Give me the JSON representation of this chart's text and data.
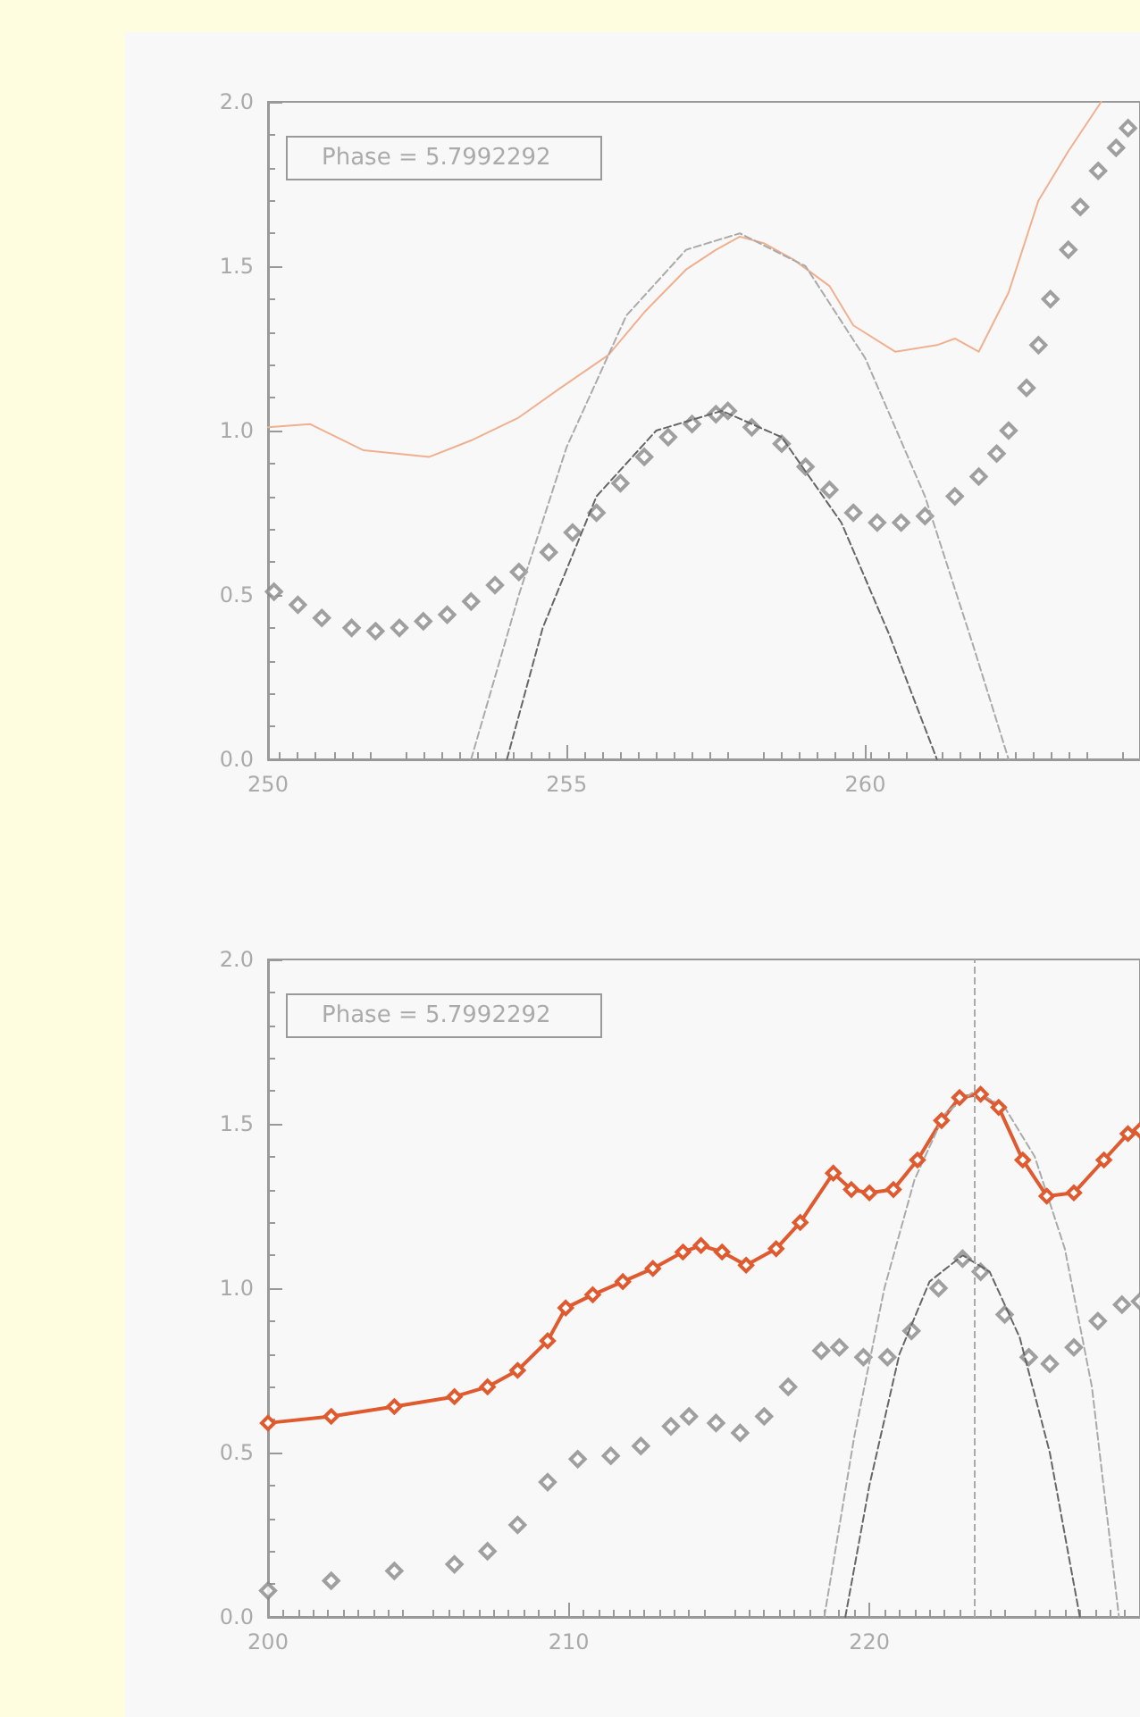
{
  "chart_data": [
    {
      "type": "line",
      "annotations": [
        "Phase = 5.7992292"
      ],
      "xlim": [
        250,
        264.6
      ],
      "xticks": [
        250,
        255,
        260
      ],
      "ylim": [
        0,
        2
      ],
      "yticks": [
        {
          "value": 0,
          "label": "0.0"
        },
        {
          "value": 0.5,
          "label": "0.5"
        },
        {
          "value": 1,
          "label": "1.0"
        },
        {
          "value": 1.5,
          "label": "1.5"
        },
        {
          "value": 2,
          "label": "2.0"
        }
      ],
      "series": [
        {
          "marker": "none",
          "line_style": "solid",
          "color": "#f0b090",
          "x": [
            250,
            250.7,
            251.6,
            252.7,
            253.4,
            254.2,
            254.9,
            255.7,
            256.3,
            257.0,
            257.5,
            257.9,
            258.3,
            258.8,
            259.4,
            259.8,
            260.5,
            261.2,
            261.5,
            261.9,
            262.4,
            262.9,
            263.4,
            263.95
          ],
          "values": [
            1.01,
            1.02,
            0.94,
            0.92,
            0.97,
            1.04,
            1.13,
            1.23,
            1.36,
            1.49,
            1.55,
            1.59,
            1.57,
            1.52,
            1.44,
            1.32,
            1.24,
            1.26,
            1.28,
            1.24,
            1.42,
            1.7,
            1.85,
            2.0
          ]
        },
        {
          "type": "scatter",
          "marker": "diamond",
          "color": "#888888",
          "x": [
            250.1,
            250.5,
            250.9,
            251.4,
            251.8,
            252.2,
            252.6,
            253.0,
            253.4,
            253.8,
            254.2,
            254.7,
            255.1,
            255.5,
            255.9,
            256.3,
            256.7,
            257.1,
            257.5,
            257.7,
            258.1,
            258.6,
            259.0,
            259.4,
            259.8,
            260.2,
            260.6,
            261.0,
            261.5,
            261.9,
            262.2,
            262.4,
            262.7,
            262.9,
            263.1,
            263.4,
            263.6,
            263.9,
            264.2,
            264.4
          ],
          "values": [
            0.51,
            0.47,
            0.43,
            0.4,
            0.39,
            0.4,
            0.42,
            0.44,
            0.48,
            0.53,
            0.57,
            0.63,
            0.69,
            0.75,
            0.84,
            0.92,
            0.98,
            1.02,
            1.05,
            1.06,
            1.01,
            0.96,
            0.89,
            0.82,
            0.75,
            0.72,
            0.72,
            0.74,
            0.8,
            0.86,
            0.93,
            1.0,
            1.13,
            1.26,
            1.4,
            1.55,
            1.68,
            1.79,
            1.86,
            1.92
          ]
        },
        {
          "marker": "none",
          "line_style": "dashed",
          "color": "#aaaaaa",
          "x": [
            253.4,
            254.2,
            255.0,
            256.0,
            257.0,
            257.9,
            259.0,
            260.0,
            261.0,
            261.8,
            262.4
          ],
          "values": [
            0,
            0.5,
            0.95,
            1.35,
            1.55,
            1.6,
            1.5,
            1.22,
            0.8,
            0.35,
            0
          ]
        },
        {
          "marker": "none",
          "line_style": "dashed",
          "color": "#666666",
          "x": [
            254.0,
            254.6,
            255.5,
            256.5,
            257.6,
            258.6,
            259.6,
            260.4,
            261.2
          ],
          "values": [
            0,
            0.4,
            0.8,
            1.0,
            1.06,
            0.98,
            0.72,
            0.38,
            0
          ]
        }
      ]
    },
    {
      "type": "line",
      "annotations": [
        "Phase = 5.7992292"
      ],
      "xlim": [
        200,
        229
      ],
      "xticks": [
        200,
        210,
        220
      ],
      "ylim": [
        0,
        2
      ],
      "yticks": [
        {
          "value": 0,
          "label": "0.0"
        },
        {
          "value": 0.5,
          "label": "0.5"
        },
        {
          "value": 1,
          "label": "1.0"
        },
        {
          "value": 1.5,
          "label": "1.5"
        },
        {
          "value": 2,
          "label": "2.0"
        }
      ],
      "ref_lines": [
        {
          "axis": "x",
          "value": 223.5,
          "color": "#aaaaaa",
          "line_style": "dashed"
        }
      ],
      "series": [
        {
          "marker": "diamond",
          "line_style": "solid",
          "color": "#e05a30",
          "x": [
            200,
            202.1,
            204.2,
            206.2,
            207.3,
            208.3,
            209.3,
            209.9,
            210.8,
            211.8,
            212.8,
            213.8,
            214.4,
            215.1,
            215.9,
            216.9,
            217.7,
            218.8,
            219.4,
            220.0,
            220.8,
            221.6,
            222.4,
            223.0,
            223.7,
            224.3,
            225.1,
            225.9,
            226.8,
            227.8,
            228.6,
            229
          ],
          "values": [
            0.59,
            0.61,
            0.64,
            0.67,
            0.7,
            0.75,
            0.84,
            0.94,
            0.98,
            1.02,
            1.06,
            1.11,
            1.13,
            1.11,
            1.07,
            1.12,
            1.2,
            1.35,
            1.3,
            1.29,
            1.3,
            1.39,
            1.51,
            1.58,
            1.59,
            1.55,
            1.39,
            1.28,
            1.29,
            1.39,
            1.47,
            1.48
          ]
        },
        {
          "type": "scatter",
          "marker": "diamond",
          "color": "#888888",
          "x": [
            200,
            202.1,
            204.2,
            206.2,
            207.3,
            208.3,
            209.3,
            210.3,
            211.4,
            212.4,
            213.4,
            214.0,
            214.9,
            215.7,
            216.5,
            217.3,
            218.4,
            219.0,
            219.8,
            220.6,
            221.4,
            222.3,
            223.1,
            223.7,
            224.5,
            225.3,
            226.0,
            226.8,
            227.6,
            228.4,
            229
          ],
          "values": [
            0.08,
            0.11,
            0.14,
            0.16,
            0.2,
            0.28,
            0.41,
            0.48,
            0.49,
            0.52,
            0.58,
            0.61,
            0.59,
            0.56,
            0.61,
            0.7,
            0.81,
            0.82,
            0.79,
            0.79,
            0.87,
            1.0,
            1.09,
            1.05,
            0.92,
            0.79,
            0.77,
            0.82,
            0.9,
            0.95,
            0.96
          ]
        },
        {
          "marker": "none",
          "line_style": "dashed",
          "color": "#aaaaaa",
          "x": [
            218.5,
            219.5,
            220.5,
            221.5,
            222.5,
            223.5,
            224.5,
            225.5,
            226.5,
            227.4,
            228.3
          ],
          "values": [
            0,
            0.55,
            1.0,
            1.33,
            1.53,
            1.6,
            1.55,
            1.4,
            1.12,
            0.7,
            0
          ]
        },
        {
          "marker": "none",
          "line_style": "dashed",
          "color": "#666666",
          "x": [
            219.2,
            220.0,
            221.0,
            222.0,
            223.1,
            224.0,
            225.0,
            226.0,
            227.0
          ],
          "values": [
            0,
            0.4,
            0.8,
            1.02,
            1.1,
            1.05,
            0.85,
            0.5,
            0
          ]
        }
      ]
    }
  ]
}
